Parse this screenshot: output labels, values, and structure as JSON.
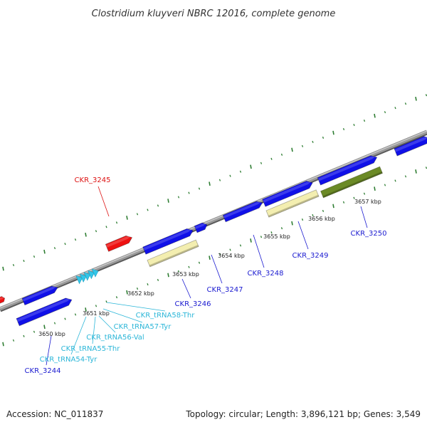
{
  "title": "Clostridium kluyveri NBRC 12016, complete genome",
  "footer": {
    "accession": "Accession: NC_011837",
    "summary": "Topology: circular; Length: 3,896,121 bp; Genes: 3,549"
  },
  "colors": {
    "backbone": "#8c8c8c",
    "tick": "#2e7d32",
    "cds": "#1010e8",
    "trna": "#33c6e8",
    "pseudo_red": "#ee1111",
    "pale_feature": "#f3eeb0",
    "olive_feature": "#6b8a26",
    "label_blue": "#1a1ad0",
    "label_cyan": "#2bb6d8",
    "label_red": "#dd1111"
  },
  "scale": {
    "unit": "kbp",
    "ticks": [
      {
        "text": "3650 kbp"
      },
      {
        "text": "3651 kbp"
      },
      {
        "text": "3652 kbp"
      },
      {
        "text": "3653 kbp"
      },
      {
        "text": "3654 kbp"
      },
      {
        "text": "3655 kbp"
      },
      {
        "text": "3656 kbp"
      },
      {
        "text": "3657 kbp"
      }
    ]
  },
  "gene_labels": [
    {
      "text": "CKR_3245",
      "kind": "red"
    },
    {
      "text": "CKR_3244",
      "kind": "blue"
    },
    {
      "text": "CKR_tRNA54-Tyr",
      "kind": "cyan"
    },
    {
      "text": "CKR_tRNA55-Thr",
      "kind": "cyan"
    },
    {
      "text": "CKR_tRNA56-Val",
      "kind": "cyan"
    },
    {
      "text": "CKR_tRNA57-Tyr",
      "kind": "cyan"
    },
    {
      "text": "CKR_tRNA58-Thr",
      "kind": "cyan"
    },
    {
      "text": "CKR_3246",
      "kind": "blue"
    },
    {
      "text": "CKR_3247",
      "kind": "blue"
    },
    {
      "text": "CKR_3248",
      "kind": "blue"
    },
    {
      "text": "CKR_3249",
      "kind": "blue"
    },
    {
      "text": "CKR_3250",
      "kind": "blue"
    }
  ]
}
